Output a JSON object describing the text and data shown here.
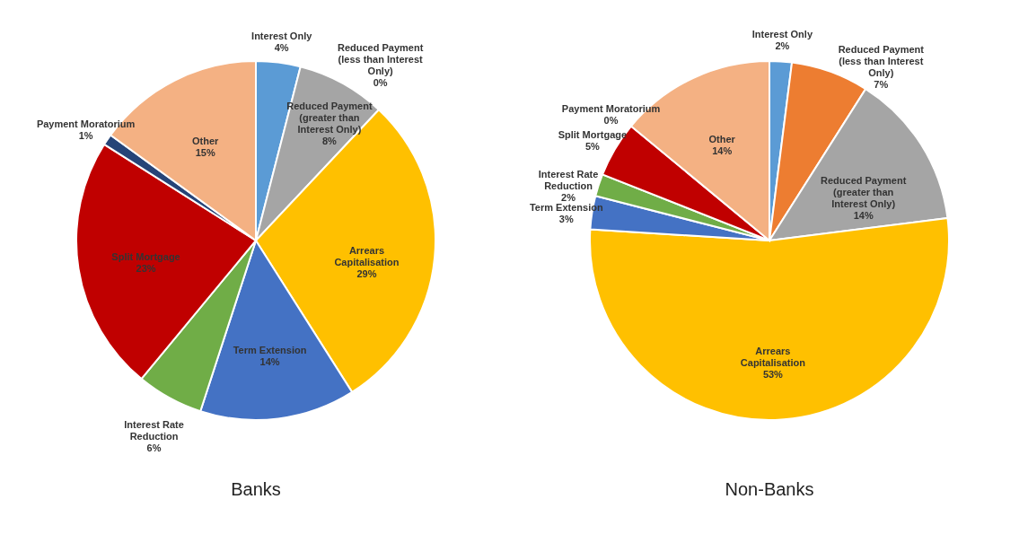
{
  "chart_data": [
    {
      "type": "pie",
      "title": "Banks",
      "categories": [
        "Interest Only",
        "Reduced Payment (less than Interest Only)",
        "Reduced Payment (greater than Interest Only)",
        "Arrears Capitalisation",
        "Term Extension",
        "Interest Rate Reduction",
        "Split Mortgage",
        "Payment Moratorium",
        "Other"
      ],
      "values": [
        4,
        0,
        8,
        29,
        14,
        6,
        23,
        1,
        15
      ],
      "value_labels": [
        "4%",
        "0%",
        "8%",
        "29%",
        "14%",
        "6%",
        "23%",
        "1%",
        "15%"
      ],
      "colors": [
        "#5b9bd5",
        "#ed7d31",
        "#a5a5a5",
        "#ffc000",
        "#4472c4",
        "#70ad47",
        "#c00000",
        "#264478",
        "#f4b183"
      ]
    },
    {
      "type": "pie",
      "title": "Non-Banks",
      "categories": [
        "Interest Only",
        "Reduced Payment (less than Interest Only)",
        "Reduced Payment (greater than Interest Only)",
        "Arrears Capitalisation",
        "Term Extension",
        "Interest Rate Reduction",
        "Split Mortgage",
        "Payment Moratorium",
        "Other"
      ],
      "values": [
        2,
        7,
        14,
        53,
        3,
        2,
        5,
        0,
        14
      ],
      "value_labels": [
        "2%",
        "7%",
        "14%",
        "53%",
        "3%",
        "2%",
        "5%",
        "0%",
        "14%"
      ],
      "colors": [
        "#5b9bd5",
        "#ed7d31",
        "#a5a5a5",
        "#ffc000",
        "#4472c4",
        "#70ad47",
        "#c00000",
        "#264478",
        "#f4b183"
      ]
    }
  ]
}
